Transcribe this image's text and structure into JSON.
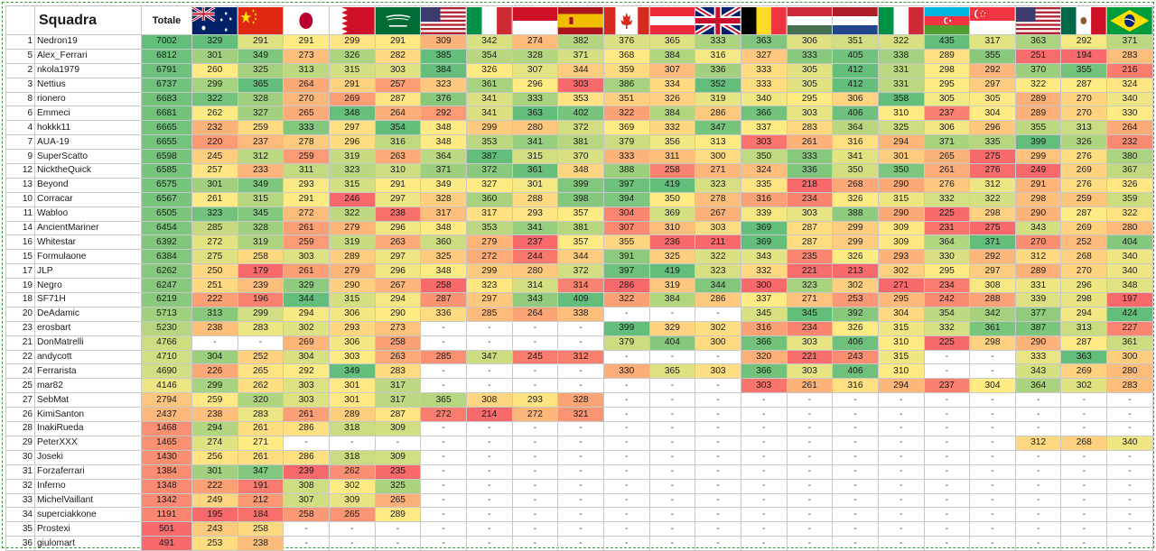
{
  "header": {
    "title": "Squadra",
    "totale": "Totale",
    "flags": [
      {
        "icon": "australia-flag-icon",
        "country": "Australia"
      },
      {
        "icon": "china-flag-icon",
        "country": "China"
      },
      {
        "icon": "japan-flag-icon",
        "country": "Japan"
      },
      {
        "icon": "bahrain-flag-icon",
        "country": "Bahrain"
      },
      {
        "icon": "saudi-arabia-flag-icon",
        "country": "Saudi Arabia"
      },
      {
        "icon": "usa-flag-icon",
        "country": "USA"
      },
      {
        "icon": "italy-flag-icon",
        "country": "Italy"
      },
      {
        "icon": "monaco-flag-icon",
        "country": "Monaco"
      },
      {
        "icon": "spain-flag-icon",
        "country": "Spain"
      },
      {
        "icon": "canada-flag-icon",
        "country": "Canada"
      },
      {
        "icon": "austria-flag-icon",
        "country": "Austria"
      },
      {
        "icon": "uk-flag-icon",
        "country": "United Kingdom"
      },
      {
        "icon": "belgium-flag-icon",
        "country": "Belgium"
      },
      {
        "icon": "hungary-flag-icon",
        "country": "Hungary"
      },
      {
        "icon": "netherlands-flag-icon",
        "country": "Netherlands"
      },
      {
        "icon": "italy-flag-icon",
        "country": "Italy"
      },
      {
        "icon": "azerbaijan-flag-icon",
        "country": "Azerbaijan"
      },
      {
        "icon": "singapore-flag-icon",
        "country": "Singapore"
      },
      {
        "icon": "usa-flag-icon",
        "country": "USA"
      },
      {
        "icon": "mexico-flag-icon",
        "country": "Mexico"
      },
      {
        "icon": "brazil-flag-icon",
        "country": "Brazil"
      }
    ]
  },
  "rows": [
    {
      "rank": "1",
      "name": "Nedron19",
      "total": "7002",
      "scores": [
        "329",
        "291",
        "291",
        "299",
        "291",
        "309",
        "342",
        "274",
        "382",
        "376",
        "365",
        "333",
        "363",
        "306",
        "351",
        "322",
        "435",
        "317",
        "363",
        "292",
        "371"
      ]
    },
    {
      "rank": "5",
      "name": "Alex_Ferrari",
      "total": "6812",
      "scores": [
        "301",
        "349",
        "273",
        "326",
        "282",
        "385",
        "354",
        "328",
        "371",
        "368",
        "384",
        "316",
        "327",
        "333",
        "405",
        "338",
        "289",
        "355",
        "251",
        "194",
        "283"
      ]
    },
    {
      "rank": "2",
      "name": "nkola1979",
      "total": "6791",
      "scores": [
        "260",
        "325",
        "313",
        "315",
        "303",
        "384",
        "326",
        "307",
        "344",
        "359",
        "307",
        "336",
        "333",
        "305",
        "412",
        "331",
        "298",
        "292",
        "370",
        "355",
        "216"
      ]
    },
    {
      "rank": "3",
      "name": "Nettius",
      "total": "6737",
      "scores": [
        "299",
        "365",
        "264",
        "291",
        "257",
        "323",
        "361",
        "296",
        "303",
        "386",
        "334",
        "352",
        "333",
        "305",
        "412",
        "331",
        "295",
        "297",
        "322",
        "287",
        "324"
      ]
    },
    {
      "rank": "8",
      "name": "rionero",
      "total": "6683",
      "scores": [
        "322",
        "328",
        "270",
        "269",
        "287",
        "376",
        "341",
        "333",
        "353",
        "351",
        "326",
        "319",
        "340",
        "295",
        "306",
        "358",
        "305",
        "305",
        "289",
        "270",
        "340"
      ]
    },
    {
      "rank": "6",
      "name": "Emmeci",
      "total": "6681",
      "scores": [
        "262",
        "327",
        "265",
        "348",
        "264",
        "292",
        "341",
        "363",
        "402",
        "322",
        "384",
        "286",
        "366",
        "303",
        "406",
        "310",
        "237",
        "304",
        "289",
        "270",
        "330"
      ]
    },
    {
      "rank": "4",
      "name": "hokkk11",
      "total": "6665",
      "scores": [
        "232",
        "259",
        "333",
        "297",
        "354",
        "348",
        "299",
        "280",
        "372",
        "369",
        "332",
        "347",
        "337",
        "283",
        "364",
        "325",
        "306",
        "296",
        "355",
        "313",
        "264"
      ]
    },
    {
      "rank": "7",
      "name": "AUA-19",
      "total": "6655",
      "scores": [
        "220",
        "237",
        "278",
        "296",
        "316",
        "348",
        "353",
        "341",
        "381",
        "379",
        "356",
        "313",
        "303",
        "261",
        "316",
        "294",
        "371",
        "335",
        "399",
        "326",
        "232"
      ]
    },
    {
      "rank": "9",
      "name": "SuperScatto",
      "total": "6598",
      "scores": [
        "245",
        "312",
        "259",
        "319",
        "263",
        "364",
        "387",
        "315",
        "370",
        "333",
        "311",
        "300",
        "350",
        "333",
        "341",
        "301",
        "265",
        "275",
        "299",
        "276",
        "380"
      ]
    },
    {
      "rank": "12",
      "name": "NicktheQuick",
      "total": "6585",
      "scores": [
        "257",
        "233",
        "311",
        "323",
        "310",
        "371",
        "372",
        "361",
        "348",
        "388",
        "258",
        "271",
        "324",
        "336",
        "350",
        "350",
        "261",
        "276",
        "249",
        "269",
        "367"
      ]
    },
    {
      "rank": "13",
      "name": "Beyond",
      "total": "6575",
      "scores": [
        "301",
        "349",
        "293",
        "315",
        "291",
        "349",
        "327",
        "301",
        "399",
        "397",
        "419",
        "323",
        "335",
        "218",
        "268",
        "290",
        "276",
        "312",
        "291",
        "276",
        "326"
      ]
    },
    {
      "rank": "10",
      "name": "Corracar",
      "total": "6567",
      "scores": [
        "261",
        "315",
        "291",
        "246",
        "297",
        "328",
        "360",
        "288",
        "398",
        "394",
        "350",
        "278",
        "316",
        "234",
        "326",
        "315",
        "332",
        "322",
        "298",
        "259",
        "359"
      ]
    },
    {
      "rank": "11",
      "name": "Wabloo",
      "total": "6505",
      "scores": [
        "323",
        "345",
        "272",
        "322",
        "238",
        "317",
        "317",
        "293",
        "357",
        "304",
        "369",
        "267",
        "339",
        "303",
        "388",
        "290",
        "225",
        "298",
        "290",
        "287",
        "322"
      ]
    },
    {
      "rank": "14",
      "name": "AncientMariner",
      "total": "6454",
      "scores": [
        "285",
        "328",
        "261",
        "279",
        "296",
        "348",
        "353",
        "341",
        "381",
        "307",
        "310",
        "303",
        "369",
        "287",
        "299",
        "309",
        "231",
        "275",
        "343",
        "269",
        "280"
      ]
    },
    {
      "rank": "16",
      "name": "Whitestar",
      "total": "6392",
      "scores": [
        "272",
        "319",
        "259",
        "319",
        "263",
        "360",
        "279",
        "237",
        "357",
        "355",
        "236",
        "211",
        "369",
        "287",
        "299",
        "309",
        "364",
        "371",
        "270",
        "252",
        "404"
      ]
    },
    {
      "rank": "15",
      "name": "Formulaone",
      "total": "6384",
      "scores": [
        "275",
        "258",
        "303",
        "289",
        "297",
        "325",
        "272",
        "244",
        "344",
        "391",
        "325",
        "322",
        "343",
        "235",
        "326",
        "293",
        "330",
        "292",
        "312",
        "268",
        "340"
      ]
    },
    {
      "rank": "17",
      "name": "JLP",
      "total": "6262",
      "scores": [
        "250",
        "179",
        "261",
        "279",
        "296",
        "348",
        "299",
        "280",
        "372",
        "397",
        "419",
        "323",
        "332",
        "221",
        "213",
        "302",
        "295",
        "297",
        "289",
        "270",
        "340"
      ]
    },
    {
      "rank": "19",
      "name": "Negro",
      "total": "6247",
      "scores": [
        "251",
        "239",
        "329",
        "290",
        "267",
        "258",
        "323",
        "314",
        "314",
        "286",
        "319",
        "344",
        "300",
        "323",
        "302",
        "271",
        "234",
        "308",
        "331",
        "296",
        "348"
      ]
    },
    {
      "rank": "18",
      "name": "SF71H",
      "total": "6219",
      "scores": [
        "222",
        "196",
        "344",
        "315",
        "294",
        "287",
        "297",
        "343",
        "409",
        "322",
        "384",
        "286",
        "337",
        "271",
        "253",
        "295",
        "242",
        "288",
        "339",
        "298",
        "197"
      ]
    },
    {
      "rank": "20",
      "name": "DeAdamic",
      "total": "5713",
      "scores": [
        "313",
        "299",
        "294",
        "306",
        "290",
        "336",
        "285",
        "264",
        "338",
        "-",
        "-",
        "-",
        "345",
        "345",
        "392",
        "304",
        "354",
        "342",
        "377",
        "294",
        "424"
      ]
    },
    {
      "rank": "23",
      "name": "erosbart",
      "total": "5230",
      "scores": [
        "238",
        "283",
        "302",
        "293",
        "273",
        "-",
        "-",
        "-",
        "-",
        "399",
        "329",
        "302",
        "316",
        "234",
        "326",
        "315",
        "332",
        "361",
        "387",
        "313",
        "227"
      ]
    },
    {
      "rank": "21",
      "name": "DonMatrelli",
      "total": "4766",
      "scores": [
        "-",
        "-",
        "269",
        "306",
        "258",
        "-",
        "-",
        "-",
        "-",
        "379",
        "404",
        "300",
        "366",
        "303",
        "406",
        "310",
        "225",
        "298",
        "290",
        "287",
        "361"
      ]
    },
    {
      "rank": "22",
      "name": "andycott",
      "total": "4710",
      "scores": [
        "304",
        "252",
        "304",
        "303",
        "263",
        "285",
        "347",
        "245",
        "312",
        "-",
        "-",
        "-",
        "320",
        "221",
        "243",
        "315",
        "-",
        "-",
        "333",
        "363",
        "300"
      ]
    },
    {
      "rank": "24",
      "name": "Ferrarista",
      "total": "4690",
      "scores": [
        "226",
        "265",
        "292",
        "349",
        "283",
        "-",
        "-",
        "-",
        "-",
        "330",
        "365",
        "303",
        "366",
        "303",
        "406",
        "310",
        "-",
        "-",
        "343",
        "269",
        "280"
      ]
    },
    {
      "rank": "25",
      "name": "mar82",
      "total": "4146",
      "scores": [
        "299",
        "262",
        "303",
        "301",
        "317",
        "-",
        "-",
        "-",
        "-",
        "-",
        "-",
        "-",
        "303",
        "261",
        "316",
        "294",
        "237",
        "304",
        "364",
        "302",
        "283"
      ]
    },
    {
      "rank": "27",
      "name": "SebMat",
      "total": "2794",
      "scores": [
        "259",
        "320",
        "303",
        "301",
        "317",
        "365",
        "308",
        "293",
        "328",
        "-",
        "-",
        "-",
        "-",
        "-",
        "-",
        "-",
        "-",
        "-",
        "-",
        "-",
        "-"
      ]
    },
    {
      "rank": "26",
      "name": "KimiSanton",
      "total": "2437",
      "scores": [
        "238",
        "283",
        "261",
        "289",
        "287",
        "272",
        "214",
        "272",
        "321",
        "-",
        "-",
        "-",
        "-",
        "-",
        "-",
        "-",
        "-",
        "-",
        "-",
        "-",
        "-"
      ]
    },
    {
      "rank": "28",
      "name": "InakiRueda",
      "total": "1468",
      "scores": [
        "294",
        "261",
        "286",
        "318",
        "309",
        "-",
        "-",
        "-",
        "-",
        "-",
        "-",
        "-",
        "-",
        "-",
        "-",
        "-",
        "-",
        "-",
        "-",
        "-",
        "-"
      ]
    },
    {
      "rank": "29",
      "name": "PeterXXX",
      "total": "1465",
      "scores": [
        "274",
        "271",
        "-",
        "-",
        "-",
        "-",
        "-",
        "-",
        "-",
        "-",
        "-",
        "-",
        "-",
        "-",
        "-",
        "-",
        "-",
        "-",
        "312",
        "268",
        "340"
      ]
    },
    {
      "rank": "30",
      "name": "Joseki",
      "total": "1430",
      "scores": [
        "256",
        "261",
        "286",
        "318",
        "309",
        "-",
        "-",
        "-",
        "-",
        "-",
        "-",
        "-",
        "-",
        "-",
        "-",
        "-",
        "-",
        "-",
        "-",
        "-",
        "-"
      ]
    },
    {
      "rank": "31",
      "name": "Forzaferrari",
      "total": "1384",
      "scores": [
        "301",
        "347",
        "239",
        "262",
        "235",
        "-",
        "-",
        "-",
        "-",
        "-",
        "-",
        "-",
        "-",
        "-",
        "-",
        "-",
        "-",
        "-",
        "-",
        "-",
        "-"
      ]
    },
    {
      "rank": "32",
      "name": "Inferno",
      "total": "1348",
      "scores": [
        "222",
        "191",
        "308",
        "302",
        "325",
        "-",
        "-",
        "-",
        "-",
        "-",
        "-",
        "-",
        "-",
        "-",
        "-",
        "-",
        "-",
        "-",
        "-",
        "-",
        "-"
      ]
    },
    {
      "rank": "33",
      "name": "MichelVaillant",
      "total": "1342",
      "scores": [
        "249",
        "212",
        "307",
        "309",
        "265",
        "-",
        "-",
        "-",
        "-",
        "-",
        "-",
        "-",
        "-",
        "-",
        "-",
        "-",
        "-",
        "-",
        "-",
        "-",
        "-"
      ]
    },
    {
      "rank": "34",
      "name": "superciakkone",
      "total": "1191",
      "scores": [
        "195",
        "184",
        "258",
        "265",
        "289",
        "-",
        "-",
        "-",
        "-",
        "-",
        "-",
        "-",
        "-",
        "-",
        "-",
        "-",
        "-",
        "-",
        "-",
        "-",
        "-"
      ]
    },
    {
      "rank": "35",
      "name": "Prostexi",
      "total": "501",
      "scores": [
        "243",
        "258",
        "-",
        "-",
        "-",
        "-",
        "-",
        "-",
        "-",
        "-",
        "-",
        "-",
        "-",
        "-",
        "-",
        "-",
        "-",
        "-",
        "-",
        "-",
        "-"
      ]
    },
    {
      "rank": "36",
      "name": "giulomart",
      "total": "491",
      "scores": [
        "253",
        "238",
        "-",
        "-",
        "-",
        "-",
        "-",
        "-",
        "-",
        "-",
        "-",
        "-",
        "-",
        "-",
        "-",
        "-",
        "-",
        "-",
        "-",
        "-",
        "-"
      ]
    }
  ],
  "colors": {
    "scale_low": "#f8696b",
    "scale_mid": "#ffeb84",
    "scale_high": "#63be7b",
    "border": "#3a9a3a"
  }
}
